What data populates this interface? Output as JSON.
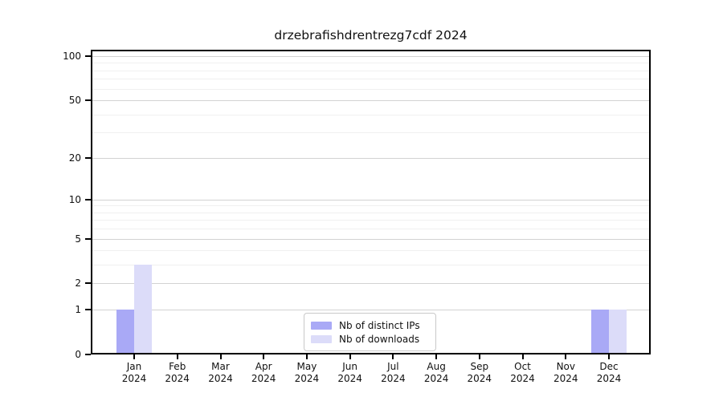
{
  "chart_data": {
    "type": "bar",
    "title": "drzebrafishdrentrezg7cdf 2024",
    "categories": [
      "Jan",
      "Feb",
      "Mar",
      "Apr",
      "May",
      "Jun",
      "Jul",
      "Aug",
      "Sep",
      "Oct",
      "Nov",
      "Dec"
    ],
    "category_year": "2024",
    "series": [
      {
        "name": "Nb of distinct IPs",
        "color": "#a9a9f6",
        "values": [
          1,
          0,
          0,
          0,
          0,
          0,
          0,
          0,
          0,
          0,
          0,
          1
        ]
      },
      {
        "name": "Nb of downloads",
        "color": "#dcdcf9",
        "values": [
          3,
          0,
          0,
          0,
          0,
          0,
          0,
          0,
          0,
          0,
          0,
          1
        ]
      }
    ],
    "yscale": "log1p",
    "ylim": [
      0,
      100
    ],
    "y_major_ticks": [
      "0",
      "1",
      "2",
      "5",
      "10",
      "20",
      "50",
      "100"
    ],
    "y_major_tick_values": [
      0,
      1,
      2,
      5,
      10,
      20,
      50,
      100
    ],
    "y_minor_gridline_values": [
      3,
      4,
      6,
      7,
      8,
      9,
      30,
      40,
      60,
      70,
      80,
      90
    ],
    "grid": "on",
    "legend_position": "inside-bottom-center",
    "xlabel": "",
    "ylabel": ""
  },
  "colors": {
    "background": "#ffffff",
    "axis": "#000000",
    "major_grid": "#d2d2d2",
    "minor_grid": "#f0f0f0",
    "legend_border": "#c9c9c9",
    "text": "#111111"
  }
}
